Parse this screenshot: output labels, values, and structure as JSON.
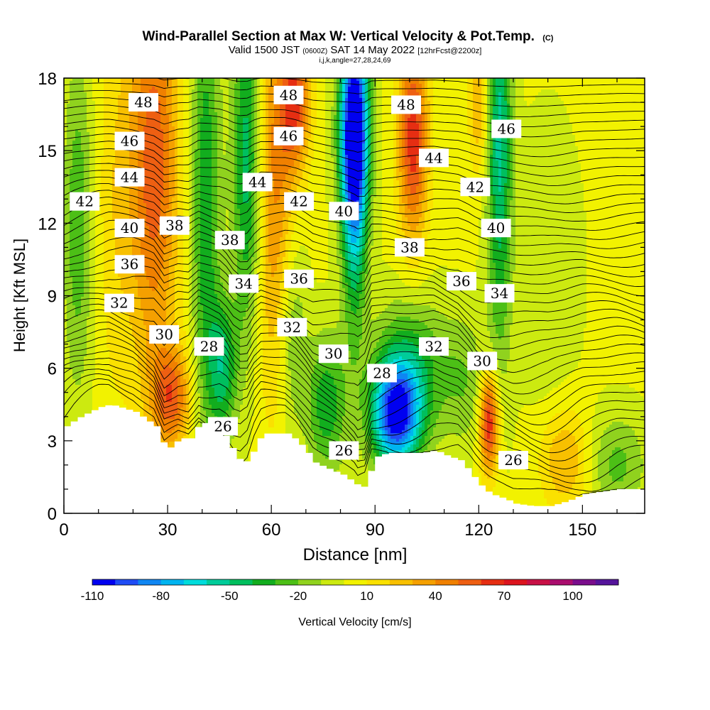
{
  "chart_data": {
    "type": "heatmap",
    "title": "Wind-Parallel Section at Max W: Vertical Velocity & Pot.Temp.",
    "title_mark": "(C)",
    "subtitle": {
      "part1": "Valid 1500 JST",
      "part2": "(0600Z)",
      "part3": "SAT 14 May 2022",
      "part4": "[12hrFcst@2200z]"
    },
    "subtitle2": "i,j,k,angle=27,28,24,69",
    "xlabel": "Distance [nm]",
    "ylabel": "Height [Kft MSL]",
    "xlim": [
      0,
      168
    ],
    "ylim": [
      0,
      18
    ],
    "xticks": [
      0,
      30,
      60,
      90,
      120,
      150
    ],
    "yticks": [
      0,
      3,
      6,
      9,
      12,
      15,
      18
    ],
    "colorbar": {
      "label": "Vertical Velocity [cm/s]",
      "min": -110,
      "step": 10,
      "tick_labels": [
        "-110",
        "-80",
        "-50",
        "-20",
        "10",
        "40",
        "70",
        "100"
      ],
      "colors": [
        "#0000f0",
        "#1f4cf5",
        "#0f86f2",
        "#00b4f0",
        "#00dcdc",
        "#00cc9a",
        "#00bf5e",
        "#12ad1e",
        "#4cbf16",
        "#90d21e",
        "#ccea10",
        "#f2f200",
        "#fae100",
        "#f8c000",
        "#f5a000",
        "#f08000",
        "#ee5f12",
        "#e62e12",
        "#dc141e",
        "#c81046",
        "#aa0d6e",
        "#7a0d8c",
        "#55149b"
      ]
    },
    "terrain_kft": [
      [
        0,
        3.6
      ],
      [
        3,
        3.9
      ],
      [
        7,
        4.2
      ],
      [
        10,
        4.4
      ],
      [
        13,
        4.5
      ],
      [
        20,
        4.2
      ],
      [
        26,
        3.6
      ],
      [
        29,
        2.6
      ],
      [
        33,
        3.1
      ],
      [
        36,
        3.1
      ],
      [
        39,
        3.8
      ],
      [
        45,
        3.4
      ],
      [
        47,
        3.0
      ],
      [
        48,
        2.7
      ],
      [
        49,
        2.4
      ],
      [
        51,
        2.1
      ],
      [
        53,
        2.2
      ],
      [
        55,
        2.9
      ],
      [
        57,
        3.3
      ],
      [
        64,
        3.3
      ],
      [
        67,
        3.0
      ],
      [
        70,
        2.5
      ],
      [
        72,
        2.1
      ],
      [
        75,
        1.9
      ],
      [
        80,
        1.6
      ],
      [
        83,
        1.3
      ],
      [
        84,
        1.2
      ],
      [
        85,
        1.0
      ],
      [
        87,
        1.2
      ],
      [
        89,
        2.3
      ],
      [
        93,
        2.5
      ],
      [
        97,
        2.5
      ],
      [
        103,
        2.5
      ],
      [
        107,
        2.6
      ],
      [
        110,
        2.4
      ],
      [
        114,
        2.2
      ],
      [
        117,
        1.7
      ],
      [
        119,
        1.3
      ],
      [
        121,
        1.0
      ],
      [
        123,
        0.8
      ],
      [
        127,
        0.6
      ],
      [
        130,
        0.4
      ],
      [
        135,
        0.3
      ],
      [
        140,
        0.3
      ],
      [
        145,
        0.5
      ],
      [
        150,
        0.8
      ],
      [
        155,
        0.9
      ],
      [
        160,
        1.0
      ],
      [
        165,
        1.0
      ],
      [
        168,
        1.0
      ]
    ],
    "w_features": [
      {
        "x": 4,
        "z": 12.0,
        "sx": 3,
        "sz": 5,
        "w": -30
      },
      {
        "x": 15,
        "z": 13.0,
        "sx": 4,
        "sz": 6,
        "w": 15
      },
      {
        "x": 26,
        "z": 14.5,
        "sx": 5,
        "sz": 6,
        "w": 55
      },
      {
        "x": 31,
        "z": 4.8,
        "sx": 4,
        "sz": 1.5,
        "w": 50
      },
      {
        "x": 41,
        "z": 13.0,
        "sx": 3,
        "sz": 7,
        "w": -40
      },
      {
        "x": 46,
        "z": 6.0,
        "sx": 3,
        "sz": 2,
        "w": -45
      },
      {
        "x": 53,
        "z": 14.5,
        "sx": 3,
        "sz": 5,
        "w": -50
      },
      {
        "x": 61,
        "z": 13.5,
        "sx": 4,
        "sz": 6,
        "w": 40
      },
      {
        "x": 67,
        "z": 17.0,
        "sx": 3,
        "sz": 2,
        "w": 55
      },
      {
        "x": 66,
        "z": 7.5,
        "sx": 3,
        "sz": 3,
        "w": -25
      },
      {
        "x": 76,
        "z": 4.5,
        "sx": 4,
        "sz": 2,
        "w": -40
      },
      {
        "x": 84,
        "z": 16.0,
        "sx": 3,
        "sz": 3,
        "w": -110
      },
      {
        "x": 84,
        "z": 12.5,
        "sx": 2.5,
        "sz": 4,
        "w": -45
      },
      {
        "x": 96,
        "z": 4.0,
        "sx": 5,
        "sz": 1.5,
        "w": -100
      },
      {
        "x": 100,
        "z": 6.0,
        "sx": 7,
        "sz": 2,
        "w": -40
      },
      {
        "x": 101,
        "z": 15.5,
        "sx": 3,
        "sz": 3,
        "w": 65
      },
      {
        "x": 116,
        "z": 5.5,
        "sx": 5,
        "sz": 2,
        "w": -20
      },
      {
        "x": 123,
        "z": 3.8,
        "sx": 2,
        "sz": 1.5,
        "w": 72
      },
      {
        "x": 120,
        "z": 17.0,
        "sx": 2,
        "sz": 2,
        "w": 30
      },
      {
        "x": 126,
        "z": 15.5,
        "sx": 2.5,
        "sz": 6,
        "w": -55
      },
      {
        "x": 140,
        "z": 10.0,
        "sx": 6,
        "sz": 4,
        "w": -12
      },
      {
        "x": 145,
        "z": 2.2,
        "sx": 5,
        "sz": 1.5,
        "w": 30
      },
      {
        "x": 160,
        "z": 2.0,
        "sx": 6,
        "sz": 1.5,
        "w": -25
      }
    ],
    "theta_labels": [
      {
        "text": "48",
        "x": 23,
        "z": 17.0
      },
      {
        "text": "48",
        "x": 65,
        "z": 17.3
      },
      {
        "text": "48",
        "x": 99,
        "z": 16.9
      },
      {
        "text": "46",
        "x": 19,
        "z": 15.4
      },
      {
        "text": "46",
        "x": 65,
        "z": 15.6
      },
      {
        "text": "46",
        "x": 128,
        "z": 15.9
      },
      {
        "text": "44",
        "x": 19,
        "z": 13.9
      },
      {
        "text": "44",
        "x": 56,
        "z": 13.7
      },
      {
        "text": "44",
        "x": 107,
        "z": 14.7
      },
      {
        "text": "42",
        "x": 6,
        "z": 12.9
      },
      {
        "text": "42",
        "x": 68,
        "z": 12.9
      },
      {
        "text": "42",
        "x": 119,
        "z": 13.5
      },
      {
        "text": "40",
        "x": 19,
        "z": 11.8
      },
      {
        "text": "40",
        "x": 81,
        "z": 12.5
      },
      {
        "text": "40",
        "x": 125,
        "z": 11.8
      },
      {
        "text": "38",
        "x": 32,
        "z": 11.9
      },
      {
        "text": "38",
        "x": 48,
        "z": 11.3
      },
      {
        "text": "38",
        "x": 100,
        "z": 11.0
      },
      {
        "text": "36",
        "x": 19,
        "z": 10.3
      },
      {
        "text": "36",
        "x": 68,
        "z": 9.7
      },
      {
        "text": "36",
        "x": 115,
        "z": 9.6
      },
      {
        "text": "34",
        "x": 52,
        "z": 9.5
      },
      {
        "text": "34",
        "x": 126,
        "z": 9.1
      },
      {
        "text": "32",
        "x": 16,
        "z": 8.7
      },
      {
        "text": "32",
        "x": 66,
        "z": 7.7
      },
      {
        "text": "32",
        "x": 107,
        "z": 6.9
      },
      {
        "text": "30",
        "x": 29,
        "z": 7.4
      },
      {
        "text": "30",
        "x": 78,
        "z": 6.6
      },
      {
        "text": "30",
        "x": 121,
        "z": 6.3
      },
      {
        "text": "28",
        "x": 42,
        "z": 6.9
      },
      {
        "text": "28",
        "x": 92,
        "z": 5.8
      },
      {
        "text": "26",
        "x": 46,
        "z": 3.6
      },
      {
        "text": "26",
        "x": 81,
        "z": 2.6
      },
      {
        "text": "26",
        "x": 130,
        "z": 2.2
      }
    ]
  }
}
